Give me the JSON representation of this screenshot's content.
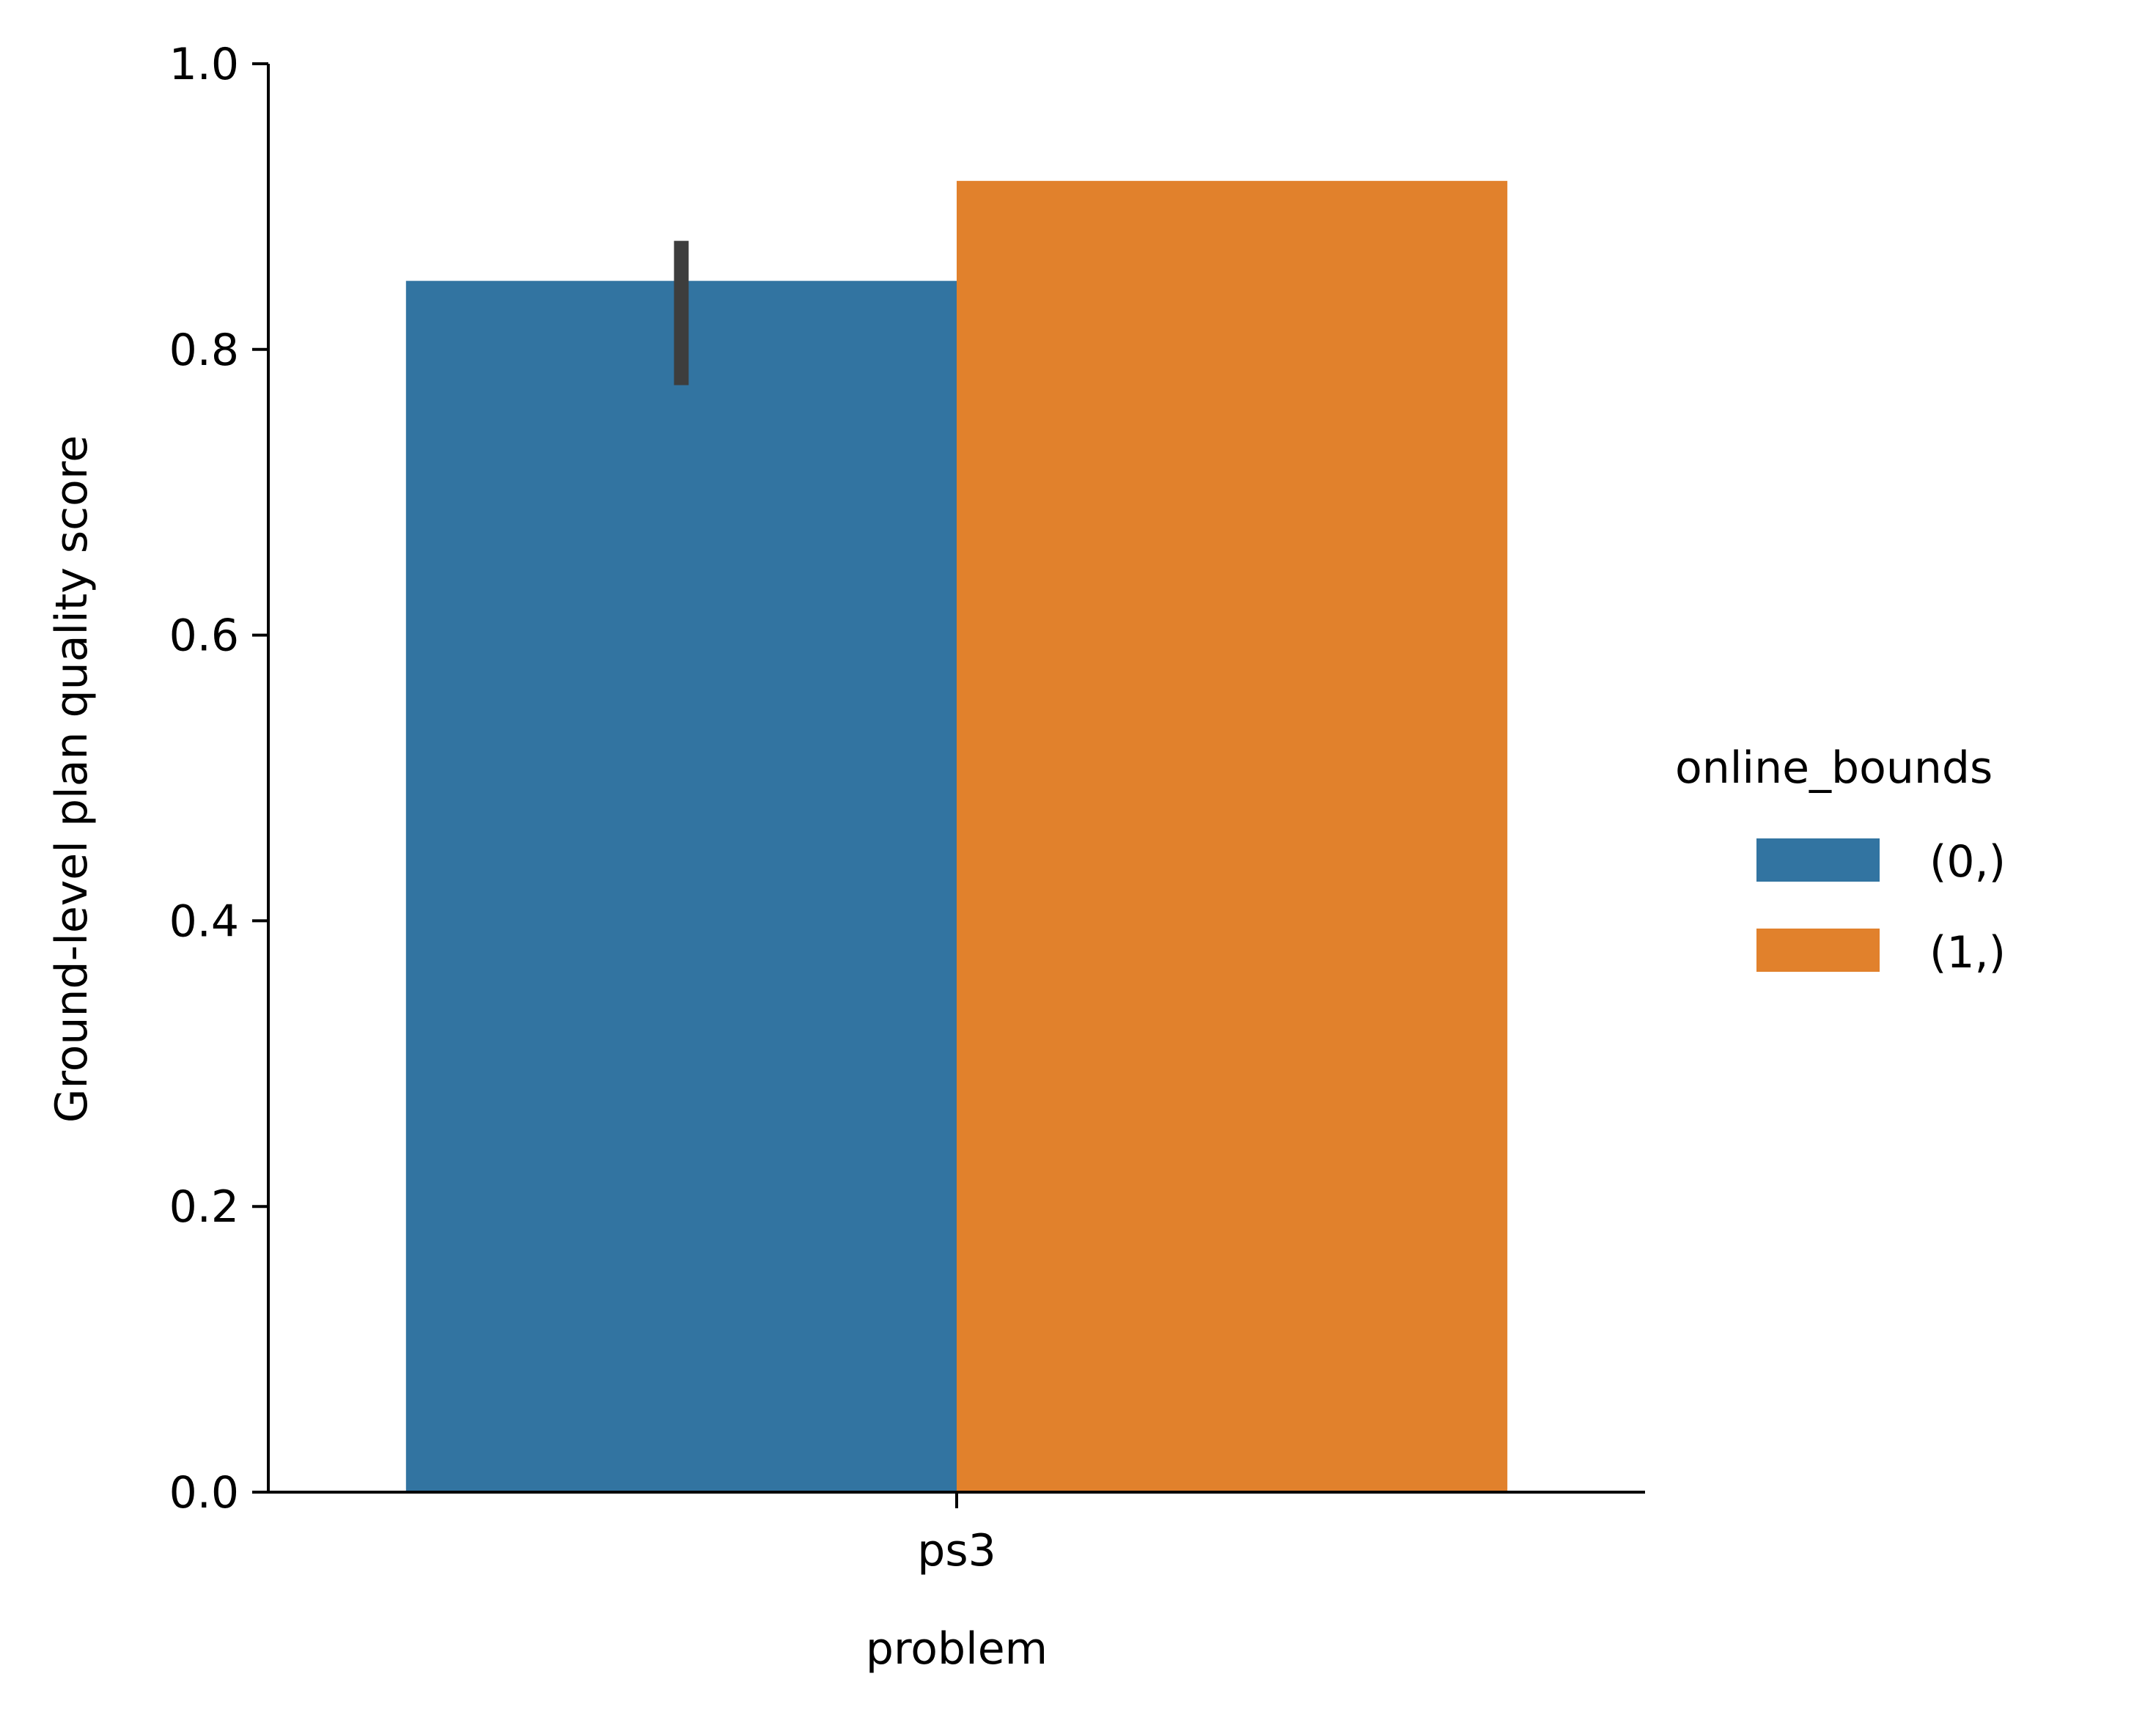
{
  "chart_data": {
    "type": "bar",
    "title": "",
    "xlabel": "problem",
    "ylabel": "Ground-level plan quality score",
    "categories": [
      "ps3"
    ],
    "ylim": [
      0,
      1.0
    ],
    "yticks": [
      "0.0",
      "0.2",
      "0.4",
      "0.6",
      "0.8",
      "1.0"
    ],
    "grid": false,
    "series": [
      {
        "name": "(0,)",
        "color": "#3274a1",
        "values": [
          0.848
        ],
        "error": [
          [
            0.775,
            0.876
          ]
        ]
      },
      {
        "name": "(1,)",
        "color": "#e1812c",
        "values": [
          0.918
        ],
        "error": [
          null
        ]
      }
    ],
    "legend": {
      "title": "online_bounds",
      "placement": "right"
    }
  }
}
